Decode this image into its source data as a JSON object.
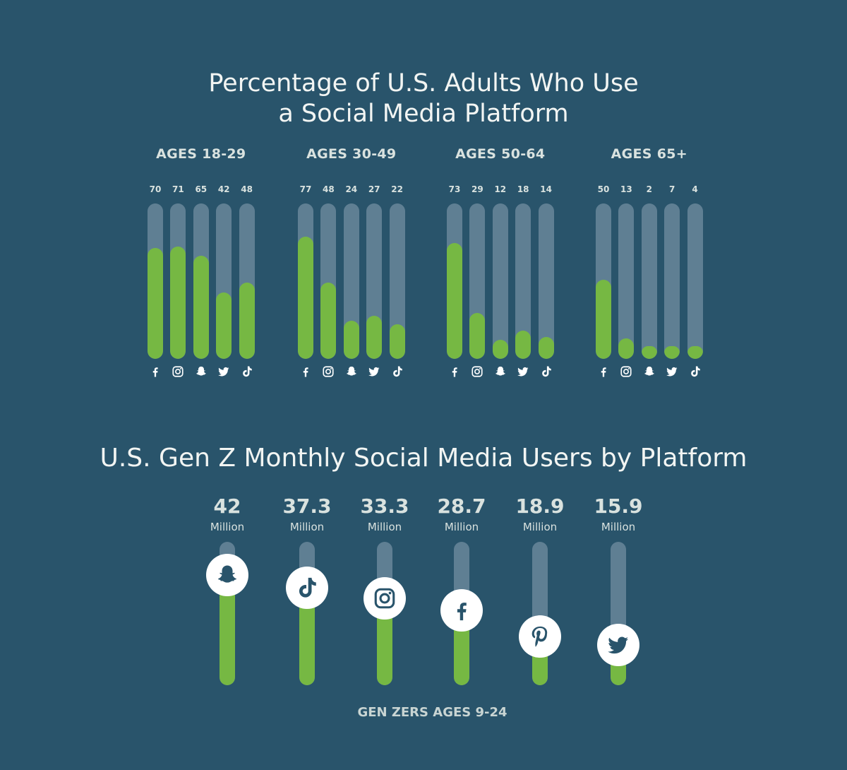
{
  "chart_data": [
    {
      "type": "bar",
      "title": "Percentage of U.S. Adults Who Use a Social Media Platform",
      "title_lines": [
        "Percentage of U.S. Adults Who Use",
        "a Social Media Platform"
      ],
      "ylim": [
        0,
        100
      ],
      "categories": [
        "facebook",
        "instagram",
        "snapchat",
        "twitter",
        "tiktok"
      ],
      "groups": [
        {
          "label": "AGES 18-29",
          "values": [
            70,
            71,
            65,
            42,
            48
          ]
        },
        {
          "label": "AGES 30-49",
          "values": [
            77,
            48,
            24,
            27,
            22
          ]
        },
        {
          "label": "AGES 50-64",
          "values": [
            73,
            29,
            12,
            18,
            14
          ]
        },
        {
          "label": "AGES 65+",
          "values": [
            50,
            13,
            2,
            7,
            4
          ]
        }
      ],
      "colors": {
        "fill": "#76b843",
        "track": "#5f7f93",
        "background": "#29546b"
      }
    },
    {
      "type": "bar",
      "title": "U.S. Gen Z Monthly Social Media Users by Platform",
      "unit": "Million",
      "categories": [
        "snapchat",
        "tiktok",
        "instagram",
        "facebook",
        "pinterest",
        "twitter"
      ],
      "values": [
        42,
        37.3,
        33.3,
        28.7,
        18.9,
        15.9
      ],
      "value_labels": [
        "42",
        "37.3",
        "33.3",
        "28.7",
        "18.9",
        "15.9"
      ],
      "footer": "GEN ZERS AGES 9-24"
    }
  ]
}
